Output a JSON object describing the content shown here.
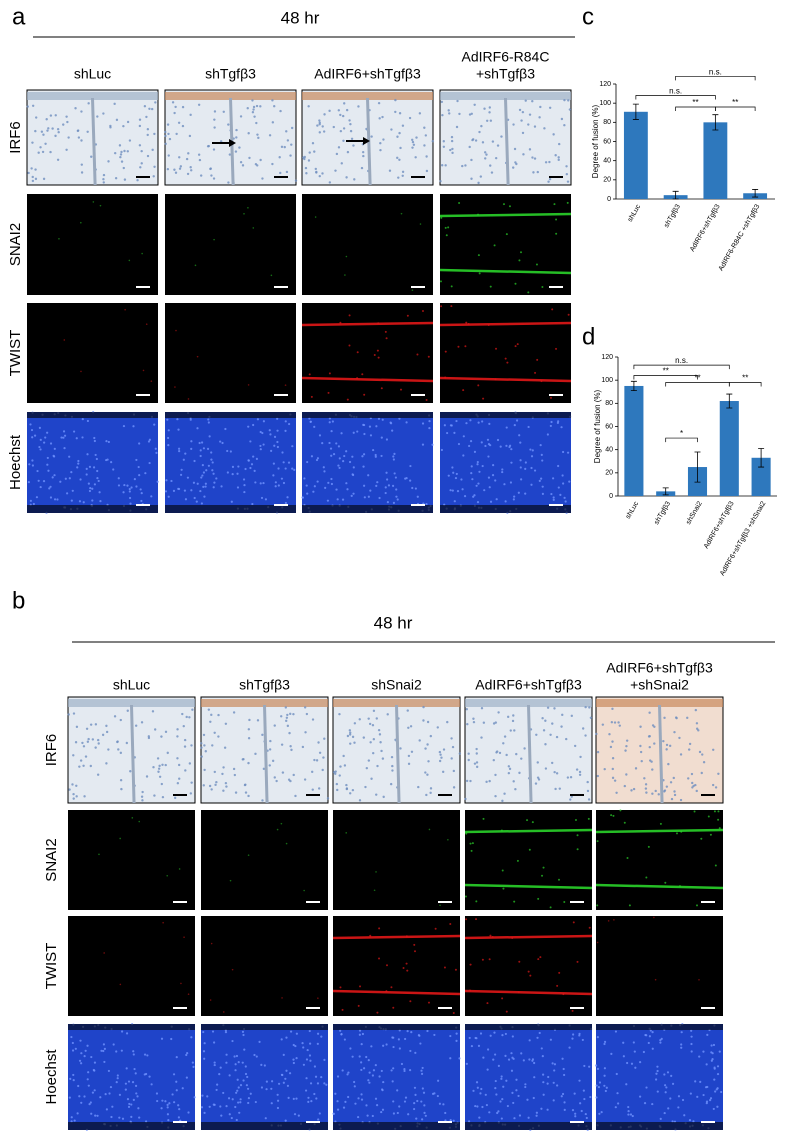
{
  "figure": {
    "panels": [
      "a",
      "b",
      "c",
      "d"
    ],
    "a": {
      "time": "48 hr",
      "columns": [
        [
          "shLuc"
        ],
        [
          "shTgfβ3"
        ],
        [
          "AdIRF6+shTgfβ3"
        ],
        [
          "AdIRF6-R84C",
          "+shTgfβ3"
        ]
      ],
      "rows": [
        "IRF6",
        "SNAI2",
        "TWIST",
        "Hoechst"
      ]
    },
    "b": {
      "time": "48 hr",
      "columns": [
        [
          "shLuc"
        ],
        [
          "shTgfβ3"
        ],
        [
          "shSnai2"
        ],
        [
          "AdIRF6+shTgfβ3"
        ],
        [
          "AdIRF6+shTgfβ3",
          "+shSnai2"
        ]
      ],
      "rows": [
        "IRF6",
        "SNAI2",
        "TWIST",
        "Hoechst"
      ]
    }
  },
  "chart_data": [
    {
      "type": "bar",
      "ylabel": "Degree of fusion (%)",
      "categories": [
        "shLuc",
        "shTgfβ3",
        "AdIRF6+shTgfβ3",
        "AdIRF6-R84C +shTgfβ3"
      ],
      "values": [
        91,
        4,
        80,
        6
      ],
      "errors": [
        8,
        4,
        8,
        4
      ],
      "color": "#2e78bd",
      "ylim": [
        0,
        120
      ],
      "yticks": [
        0,
        20,
        40,
        60,
        80,
        100,
        120
      ],
      "annotations": [
        "n.s.",
        "n.s.",
        "**",
        "**"
      ]
    },
    {
      "type": "bar",
      "ylabel": "Degree of fusion (%)",
      "categories": [
        "shLuc",
        "shTgfβ3",
        "shSnai2",
        "AdIRF6+shTgfβ3",
        "AdIRF6+shTgfβ3 +shSnai2"
      ],
      "values": [
        95,
        4,
        25,
        82,
        33
      ],
      "errors": [
        4,
        3,
        13,
        6,
        8
      ],
      "color": "#2e78bd",
      "ylim": [
        0,
        120
      ],
      "yticks": [
        0,
        20,
        40,
        60,
        80,
        100,
        120
      ],
      "annotations": [
        "n.s.",
        "**",
        "**",
        "**",
        "*"
      ]
    }
  ]
}
